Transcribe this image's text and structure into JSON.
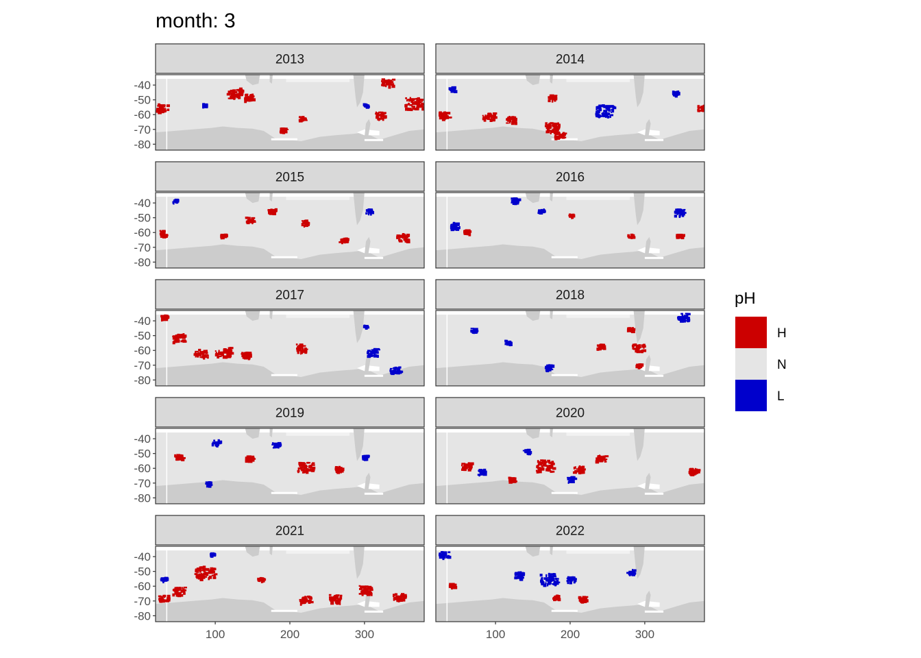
{
  "chart_data": {
    "type": "heatmap",
    "title": "month: 3",
    "facet_variable": "year",
    "facets": [
      {
        "label": "2013",
        "regions": [
          {
            "lon": 28,
            "lat": -55,
            "ph": "H",
            "size": 6
          },
          {
            "lon": 125,
            "lat": -45,
            "ph": "H",
            "size": 8
          },
          {
            "lon": 145,
            "lat": -48,
            "ph": "H",
            "size": 5
          },
          {
            "lon": 330,
            "lat": -38,
            "ph": "H",
            "size": 6
          },
          {
            "lon": 365,
            "lat": -52,
            "ph": "H",
            "size": 9
          },
          {
            "lon": 320,
            "lat": -60,
            "ph": "H",
            "size": 5
          },
          {
            "lon": 215,
            "lat": -62,
            "ph": "H",
            "size": 3
          },
          {
            "lon": 190,
            "lat": -70,
            "ph": "H",
            "size": 3
          },
          {
            "lon": 85,
            "lat": -53,
            "ph": "L",
            "size": 2
          },
          {
            "lon": 300,
            "lat": -53,
            "ph": "L",
            "size": 2
          }
        ]
      },
      {
        "label": "2014",
        "regions": [
          {
            "lon": 245,
            "lat": -57,
            "ph": "L",
            "size": 9
          },
          {
            "lon": 30,
            "lat": -60,
            "ph": "H",
            "size": 5
          },
          {
            "lon": 90,
            "lat": -61,
            "ph": "H",
            "size": 6
          },
          {
            "lon": 120,
            "lat": -63,
            "ph": "H",
            "size": 5
          },
          {
            "lon": 175,
            "lat": -68,
            "ph": "H",
            "size": 7
          },
          {
            "lon": 185,
            "lat": -73,
            "ph": "H",
            "size": 5
          },
          {
            "lon": 175,
            "lat": -48,
            "ph": "H",
            "size": 4
          },
          {
            "lon": 375,
            "lat": -55,
            "ph": "H",
            "size": 4
          },
          {
            "lon": 40,
            "lat": -42,
            "ph": "L",
            "size": 3
          },
          {
            "lon": 340,
            "lat": -45,
            "ph": "L",
            "size": 3
          }
        ]
      },
      {
        "label": "2015",
        "regions": [
          {
            "lon": 30,
            "lat": -60,
            "ph": "H",
            "size": 4
          },
          {
            "lon": 350,
            "lat": -63,
            "ph": "H",
            "size": 6
          },
          {
            "lon": 145,
            "lat": -51,
            "ph": "H",
            "size": 4
          },
          {
            "lon": 175,
            "lat": -45,
            "ph": "H",
            "size": 4
          },
          {
            "lon": 220,
            "lat": -53,
            "ph": "H",
            "size": 4
          },
          {
            "lon": 270,
            "lat": -65,
            "ph": "H",
            "size": 4
          },
          {
            "lon": 110,
            "lat": -62,
            "ph": "H",
            "size": 3
          },
          {
            "lon": 305,
            "lat": -45,
            "ph": "L",
            "size": 3
          },
          {
            "lon": 45,
            "lat": -38,
            "ph": "L",
            "size": 2
          }
        ]
      },
      {
        "label": "2016",
        "regions": [
          {
            "lon": 45,
            "lat": -55,
            "ph": "L",
            "size": 5
          },
          {
            "lon": 125,
            "lat": -38,
            "ph": "L",
            "size": 4
          },
          {
            "lon": 345,
            "lat": -46,
            "ph": "L",
            "size": 5
          },
          {
            "lon": 160,
            "lat": -45,
            "ph": "L",
            "size": 3
          },
          {
            "lon": 60,
            "lat": -59,
            "ph": "H",
            "size": 3
          },
          {
            "lon": 280,
            "lat": -62,
            "ph": "H",
            "size": 3
          },
          {
            "lon": 345,
            "lat": -62,
            "ph": "H",
            "size": 3
          },
          {
            "lon": 200,
            "lat": -48,
            "ph": "H",
            "size": 2
          }
        ]
      },
      {
        "label": "2017",
        "regions": [
          {
            "lon": 50,
            "lat": -51,
            "ph": "H",
            "size": 6
          },
          {
            "lon": 80,
            "lat": -62,
            "ph": "H",
            "size": 7
          },
          {
            "lon": 110,
            "lat": -61,
            "ph": "H",
            "size": 8
          },
          {
            "lon": 140,
            "lat": -63,
            "ph": "H",
            "size": 5
          },
          {
            "lon": 215,
            "lat": -58,
            "ph": "H",
            "size": 6
          },
          {
            "lon": 30,
            "lat": -37,
            "ph": "H",
            "size": 3
          },
          {
            "lon": 310,
            "lat": -61,
            "ph": "L",
            "size": 6
          },
          {
            "lon": 340,
            "lat": -73,
            "ph": "L",
            "size": 5
          },
          {
            "lon": 300,
            "lat": -43,
            "ph": "L",
            "size": 2
          }
        ]
      },
      {
        "label": "2018",
        "regions": [
          {
            "lon": 350,
            "lat": -37,
            "ph": "L",
            "size": 6
          },
          {
            "lon": 70,
            "lat": -46,
            "ph": "L",
            "size": 3
          },
          {
            "lon": 115,
            "lat": -54,
            "ph": "L",
            "size": 3
          },
          {
            "lon": 170,
            "lat": -71,
            "ph": "L",
            "size": 4
          },
          {
            "lon": 290,
            "lat": -58,
            "ph": "H",
            "size": 6
          },
          {
            "lon": 240,
            "lat": -57,
            "ph": "H",
            "size": 4
          },
          {
            "lon": 280,
            "lat": -45,
            "ph": "H",
            "size": 3
          },
          {
            "lon": 290,
            "lat": -70,
            "ph": "H",
            "size": 3
          }
        ]
      },
      {
        "label": "2019",
        "regions": [
          {
            "lon": 220,
            "lat": -59,
            "ph": "H",
            "size": 8
          },
          {
            "lon": 50,
            "lat": -52,
            "ph": "H",
            "size": 4
          },
          {
            "lon": 145,
            "lat": -53,
            "ph": "H",
            "size": 4
          },
          {
            "lon": 265,
            "lat": -60,
            "ph": "H",
            "size": 4
          },
          {
            "lon": 100,
            "lat": -42,
            "ph": "L",
            "size": 4
          },
          {
            "lon": 180,
            "lat": -44,
            "ph": "L",
            "size": 4
          },
          {
            "lon": 300,
            "lat": -52,
            "ph": "L",
            "size": 3
          },
          {
            "lon": 90,
            "lat": -70,
            "ph": "L",
            "size": 3
          }
        ]
      },
      {
        "label": "2020",
        "regions": [
          {
            "lon": 165,
            "lat": -58,
            "ph": "H",
            "size": 9
          },
          {
            "lon": 240,
            "lat": -53,
            "ph": "H",
            "size": 5
          },
          {
            "lon": 60,
            "lat": -58,
            "ph": "H",
            "size": 5
          },
          {
            "lon": 365,
            "lat": -62,
            "ph": "H",
            "size": 5
          },
          {
            "lon": 210,
            "lat": -60,
            "ph": "H",
            "size": 5
          },
          {
            "lon": 120,
            "lat": -67,
            "ph": "H",
            "size": 3
          },
          {
            "lon": 80,
            "lat": -62,
            "ph": "L",
            "size": 4
          },
          {
            "lon": 200,
            "lat": -67,
            "ph": "L",
            "size": 4
          },
          {
            "lon": 140,
            "lat": -48,
            "ph": "L",
            "size": 3
          }
        ]
      },
      {
        "label": "2021",
        "regions": [
          {
            "lon": 85,
            "lat": -50,
            "ph": "H",
            "size": 10
          },
          {
            "lon": 50,
            "lat": -63,
            "ph": "H",
            "size": 6
          },
          {
            "lon": 220,
            "lat": -69,
            "ph": "H",
            "size": 6
          },
          {
            "lon": 260,
            "lat": -68,
            "ph": "H",
            "size": 6
          },
          {
            "lon": 300,
            "lat": -62,
            "ph": "H",
            "size": 6
          },
          {
            "lon": 345,
            "lat": -67,
            "ph": "H",
            "size": 6
          },
          {
            "lon": 30,
            "lat": -68,
            "ph": "H",
            "size": 5
          },
          {
            "lon": 160,
            "lat": -55,
            "ph": "H",
            "size": 3
          },
          {
            "lon": 30,
            "lat": -55,
            "ph": "L",
            "size": 3
          },
          {
            "lon": 95,
            "lat": -38,
            "ph": "L",
            "size": 2
          }
        ]
      },
      {
        "label": "2022",
        "regions": [
          {
            "lon": 170,
            "lat": -55,
            "ph": "L",
            "size": 9
          },
          {
            "lon": 30,
            "lat": -38,
            "ph": "L",
            "size": 5
          },
          {
            "lon": 130,
            "lat": -52,
            "ph": "L",
            "size": 5
          },
          {
            "lon": 200,
            "lat": -55,
            "ph": "L",
            "size": 4
          },
          {
            "lon": 280,
            "lat": -50,
            "ph": "L",
            "size": 4
          },
          {
            "lon": 40,
            "lat": -59,
            "ph": "H",
            "size": 3
          },
          {
            "lon": 215,
            "lat": -68,
            "ph": "H",
            "size": 4
          },
          {
            "lon": 180,
            "lat": -67,
            "ph": "H",
            "size": 3
          }
        ]
      }
    ],
    "x_axis": {
      "ticks": [
        100,
        200,
        300
      ],
      "tick_labels": [
        "100",
        "200",
        "300"
      ],
      "range": [
        20,
        380
      ]
    },
    "y_axis": {
      "ticks": [
        -40,
        -50,
        -60,
        -70,
        -80
      ],
      "tick_labels": [
        "-40",
        "-50",
        "-60",
        "-70",
        "-80"
      ],
      "range": [
        -84,
        -33
      ]
    },
    "legend": {
      "title": "pH",
      "position": "right",
      "entries": [
        {
          "label": "H",
          "color": "#cc0000"
        },
        {
          "label": "N",
          "color": "#e5e5e5"
        },
        {
          "label": "L",
          "color": "#0000cc"
        }
      ]
    },
    "colors": {
      "H": "#cc0000",
      "N": "#e5e5e5",
      "L": "#0000cc",
      "land": "#cccccc",
      "ice": "#ffffff",
      "strip_fill": "#d9d9d9",
      "panel_border": "#333333"
    }
  }
}
